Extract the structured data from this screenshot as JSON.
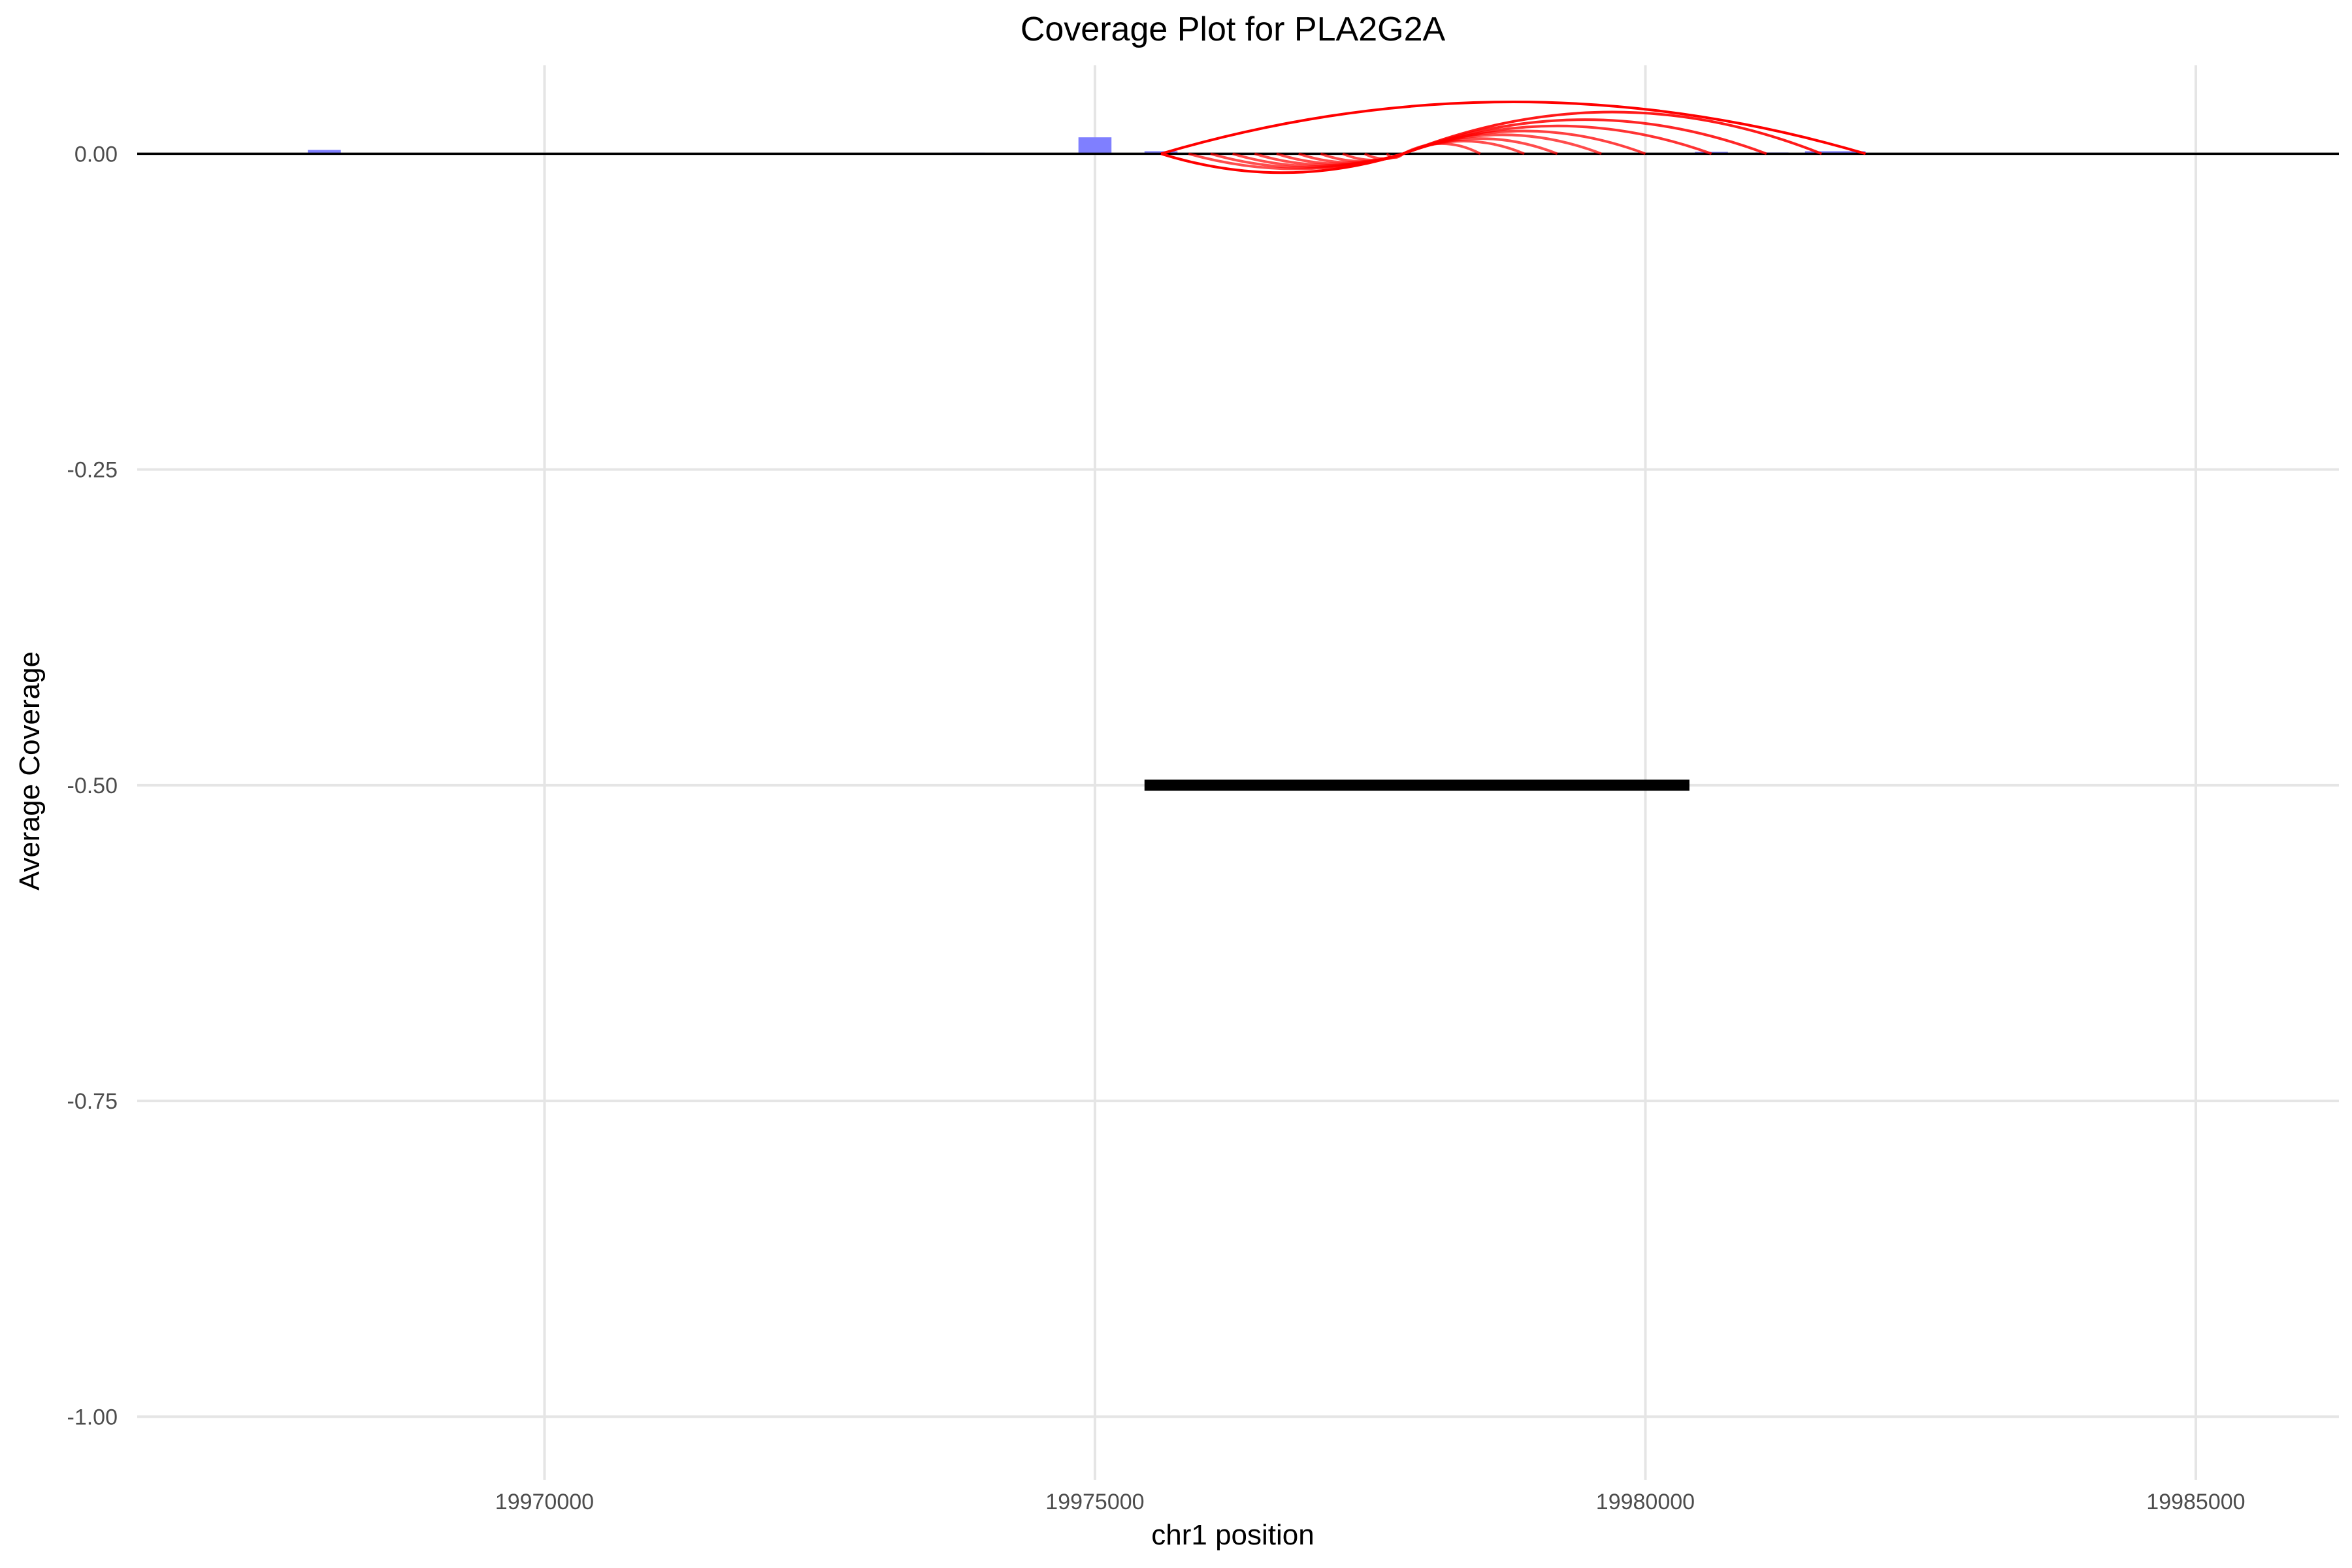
{
  "chart_data": {
    "type": "line",
    "title": "Coverage Plot for PLA2G2A",
    "xlabel": "chr1 position",
    "ylabel": "Average Coverage",
    "xlim": [
      19966300,
      19986300
    ],
    "ylim": [
      -1.05,
      0.07
    ],
    "x_ticks": [
      19970000,
      19975000,
      19980000,
      19985000
    ],
    "x_tick_labels": [
      "19970000",
      "19975000",
      "19980000",
      "19985000"
    ],
    "y_ticks": [
      0.0,
      -0.25,
      -0.5,
      -0.75,
      -1.0
    ],
    "y_tick_labels": [
      "0.00",
      "-0.25",
      "-0.50",
      "-0.75",
      "-1.00"
    ],
    "grid": true,
    "colors": {
      "coverage": "#7f7fff",
      "junction": "#ff0000",
      "gene": "#000000",
      "baseline": "#000000",
      "grid": "#e5e5e5"
    },
    "coverage_bars": [
      {
        "start": 19967850,
        "end": 19968150,
        "value": 0.003
      },
      {
        "start": 19973700,
        "end": 19974000,
        "value": 0.0008
      },
      {
        "start": 19974850,
        "end": 19975150,
        "value": 0.013
      },
      {
        "start": 19975450,
        "end": 19975750,
        "value": 0.002
      },
      {
        "start": 19980450,
        "end": 19980750,
        "value": 0.0015
      },
      {
        "start": 19981000,
        "end": 19981300,
        "value": 0.001
      },
      {
        "start": 19981450,
        "end": 19982000,
        "value": 0.002
      }
    ],
    "gene_segment": {
      "start": 19975450,
      "end": 19980400,
      "y": -0.5
    },
    "junction_arcs": [
      {
        "start": 19975600,
        "end": 19982000,
        "height": 0.041,
        "alpha": 1.0
      },
      {
        "start": 19975600,
        "end": 19977800,
        "height": -0.015,
        "alpha": 1.0
      },
      {
        "start": 19977800,
        "end": 19981600,
        "height": 0.033,
        "alpha": 0.9
      },
      {
        "start": 19977800,
        "end": 19981100,
        "height": 0.027,
        "alpha": 0.85
      },
      {
        "start": 19977800,
        "end": 19980600,
        "height": 0.022,
        "alpha": 0.8
      },
      {
        "start": 19977800,
        "end": 19980000,
        "height": 0.018,
        "alpha": 0.75
      },
      {
        "start": 19977800,
        "end": 19979600,
        "height": 0.015,
        "alpha": 0.7
      },
      {
        "start": 19977800,
        "end": 19979200,
        "height": 0.012,
        "alpha": 0.7
      },
      {
        "start": 19977800,
        "end": 19978900,
        "height": 0.01,
        "alpha": 0.7
      },
      {
        "start": 19977800,
        "end": 19978500,
        "height": 0.008,
        "alpha": 0.7
      },
      {
        "start": 19975850,
        "end": 19977800,
        "height": -0.012,
        "alpha": 0.7
      },
      {
        "start": 19976050,
        "end": 19977800,
        "height": -0.011,
        "alpha": 0.7
      },
      {
        "start": 19976250,
        "end": 19977800,
        "height": -0.01,
        "alpha": 0.7
      },
      {
        "start": 19976450,
        "end": 19977800,
        "height": -0.009,
        "alpha": 0.7
      },
      {
        "start": 19976650,
        "end": 19977800,
        "height": -0.008,
        "alpha": 0.7
      },
      {
        "start": 19976850,
        "end": 19977800,
        "height": -0.007,
        "alpha": 0.7
      },
      {
        "start": 19977050,
        "end": 19977800,
        "height": -0.006,
        "alpha": 0.7
      },
      {
        "start": 19977250,
        "end": 19977800,
        "height": -0.005,
        "alpha": 0.7
      },
      {
        "start": 19977450,
        "end": 19977800,
        "height": -0.004,
        "alpha": 0.7
      },
      {
        "start": 19977650,
        "end": 19977800,
        "height": -0.003,
        "alpha": 0.7
      }
    ]
  }
}
